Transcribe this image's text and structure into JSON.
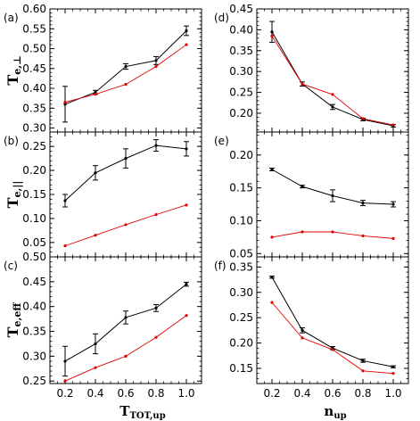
{
  "colors": {
    "series_black": "#000000",
    "series_red": "#e00000"
  },
  "xlabels": {
    "left": {
      "main": "T",
      "sub": "TOT,up"
    },
    "right": {
      "main": "n",
      "sub": "up"
    }
  },
  "chart_data": [
    {
      "id": "a",
      "panel_label": "(a)",
      "type": "line",
      "x": [
        0.2,
        0.4,
        0.6,
        0.8,
        1.0
      ],
      "xlim": [
        0.1,
        1.1
      ],
      "xticks": [
        "0.2",
        "0.4",
        "0.6",
        "0.8",
        "1.0"
      ],
      "ylim": [
        0.29,
        0.6
      ],
      "yticks": [
        "0.30",
        "0.35",
        "0.40",
        "0.45",
        "0.50",
        "0.55",
        "0.60"
      ],
      "ylabel": {
        "main": "T",
        "sub": "e,⊥"
      },
      "series": [
        {
          "color": "#000000",
          "values": [
            0.36,
            0.39,
            0.455,
            0.47,
            0.545
          ],
          "errors": [
            0.045,
            0.005,
            0.007,
            0.01,
            0.012
          ]
        },
        {
          "color": "#e00000",
          "values": [
            0.365,
            0.385,
            0.41,
            0.455,
            0.51
          ],
          "errors": []
        }
      ]
    },
    {
      "id": "b",
      "panel_label": "(b)",
      "type": "line",
      "x": [
        0.2,
        0.4,
        0.6,
        0.8,
        1.0
      ],
      "xlim": [
        0.1,
        1.1
      ],
      "xticks": [
        "0.2",
        "0.4",
        "0.6",
        "0.8",
        "1.0"
      ],
      "ylim": [
        0.02,
        0.28
      ],
      "yticks": [
        "0.05",
        "0.10",
        "0.15",
        "0.20",
        "0.25"
      ],
      "ylabel": {
        "main": "T",
        "sub": "e,||"
      },
      "series": [
        {
          "color": "#000000",
          "values": [
            0.137,
            0.195,
            0.225,
            0.252,
            0.245
          ],
          "errors": [
            0.013,
            0.015,
            0.02,
            0.012,
            0.015
          ]
        },
        {
          "color": "#e00000",
          "values": [
            0.043,
            0.065,
            0.087,
            0.108,
            0.128
          ],
          "errors": []
        }
      ]
    },
    {
      "id": "c",
      "panel_label": "(c)",
      "type": "line",
      "x": [
        0.2,
        0.4,
        0.6,
        0.8,
        1.0
      ],
      "xlim": [
        0.1,
        1.1
      ],
      "xticks": [
        "0.2",
        "0.4",
        "0.6",
        "0.8",
        "1.0"
      ],
      "ylim": [
        0.245,
        0.5
      ],
      "yticks": [
        "0.25",
        "0.30",
        "0.35",
        "0.40",
        "0.45",
        "0.50"
      ],
      "ylabel": {
        "main": "T",
        "sub": "e,eff"
      },
      "series": [
        {
          "color": "#000000",
          "values": [
            0.29,
            0.325,
            0.378,
            0.397,
            0.445
          ],
          "errors": [
            0.03,
            0.02,
            0.013,
            0.007,
            0.004
          ]
        },
        {
          "color": "#e00000",
          "values": [
            0.25,
            0.277,
            0.3,
            0.338,
            0.382
          ],
          "errors": []
        }
      ]
    },
    {
      "id": "d",
      "panel_label": "(d)",
      "type": "line",
      "x": [
        0.2,
        0.4,
        0.6,
        0.8,
        1.0
      ],
      "xlim": [
        0.1,
        1.1
      ],
      "xticks": [
        "0.2",
        "0.4",
        "0.6",
        "0.8",
        "1.0"
      ],
      "ylim": [
        0.155,
        0.45
      ],
      "yticks": [
        "0.20",
        "0.25",
        "0.30",
        "0.35",
        "0.40",
        "0.45"
      ],
      "ylabel": {
        "main": "",
        "sub": ""
      },
      "series": [
        {
          "color": "#000000",
          "values": [
            0.395,
            0.27,
            0.215,
            0.185,
            0.17
          ],
          "errors": [
            0.025,
            0.005,
            0.006,
            0.003,
            0.003
          ]
        },
        {
          "color": "#e00000",
          "values": [
            0.385,
            0.27,
            0.245,
            0.187,
            0.172
          ],
          "errors": []
        }
      ]
    },
    {
      "id": "e",
      "panel_label": "(e)",
      "type": "line",
      "x": [
        0.2,
        0.4,
        0.6,
        0.8,
        1.0
      ],
      "xlim": [
        0.1,
        1.1
      ],
      "xticks": [
        "0.2",
        "0.4",
        "0.6",
        "0.8",
        "1.0"
      ],
      "ylim": [
        0.045,
        0.235
      ],
      "yticks": [
        "0.05",
        "0.10",
        "0.15",
        "0.20"
      ],
      "ylabel": {
        "main": "",
        "sub": ""
      },
      "series": [
        {
          "color": "#000000",
          "values": [
            0.178,
            0.152,
            0.138,
            0.127,
            0.125
          ],
          "errors": [
            0.002,
            0.002,
            0.009,
            0.004,
            0.004
          ]
        },
        {
          "color": "#e00000",
          "values": [
            0.075,
            0.083,
            0.083,
            0.077,
            0.073
          ],
          "errors": []
        }
      ]
    },
    {
      "id": "f",
      "panel_label": "(f)",
      "type": "line",
      "x": [
        0.2,
        0.4,
        0.6,
        0.8,
        1.0
      ],
      "xlim": [
        0.1,
        1.1
      ],
      "xticks": [
        "0.2",
        "0.4",
        "0.6",
        "0.8",
        "1.0"
      ],
      "ylim": [
        0.12,
        0.37
      ],
      "yticks": [
        "0.15",
        "0.20",
        "0.25",
        "0.30",
        "0.35"
      ],
      "ylabel": {
        "main": "",
        "sub": ""
      },
      "series": [
        {
          "color": "#000000",
          "values": [
            0.33,
            0.225,
            0.19,
            0.165,
            0.153
          ],
          "errors": [
            0.002,
            0.005,
            0.003,
            0.003,
            0.002
          ]
        },
        {
          "color": "#e00000",
          "values": [
            0.28,
            0.21,
            0.187,
            0.145,
            0.14
          ],
          "errors": []
        }
      ]
    }
  ]
}
